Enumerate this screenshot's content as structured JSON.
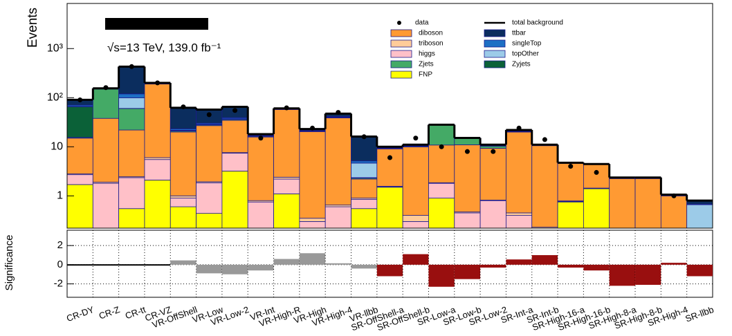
{
  "chart_data": [
    {
      "type": "stacked_log_bar",
      "ylabel": "Events",
      "annotation": "√s=13 TeV, 139.0 fb⁻¹",
      "categories": [
        "CR-DY",
        "CR-Z",
        "CR-tt",
        "CR-VZ",
        "VR-OffShell",
        "VR-Low",
        "VR-Low-2",
        "VR-Int",
        "VR-High-R",
        "VR-High",
        "VR-High-4",
        "VR-llbb",
        "SR-OffShell-a",
        "SR-OffShell-b",
        "SR-Low-a",
        "SR-Low-b",
        "SR-Low-2",
        "SR-Int-a",
        "SR-Int-b",
        "SR-High-16-a",
        "SR-High-16-b",
        "SR-High-8-a",
        "SR-High-8-b",
        "SR-High-4",
        "SR-llbb"
      ],
      "ylim": [
        0.22,
        8300
      ],
      "log_scale": true,
      "yticks": [
        1,
        10,
        {
          "value": 100,
          "label": "10²"
        },
        {
          "value": 1000,
          "label": "10³"
        }
      ],
      "series": [
        {
          "name": "FNP",
          "color": "#ffff00",
          "values": [
            1.7,
            0.1,
            0.55,
            2.1,
            0.6,
            0.44,
            3.2,
            0.1,
            1.1,
            0.05,
            0.1,
            0.55,
            1.5,
            0.05,
            0.9,
            0.02,
            0.02,
            0.02,
            0.01,
            0.75,
            1.4,
            0.01,
            0.01,
            0.01,
            0.01
          ]
        },
        {
          "name": "higgs",
          "color": "#ffc0c8",
          "values": [
            1.0,
            1.7,
            1.8,
            3.4,
            0.3,
            1.4,
            4.2,
            0.65,
            1.1,
            0.25,
            0.5,
            0.3,
            0.05,
            0.25,
            0.9,
            0.43,
            0.78,
            0.38,
            0.2,
            0.02,
            0.02,
            0.02,
            0.02,
            0.02,
            0.02
          ]
        },
        {
          "name": "triboson",
          "color": "#ffcc99",
          "values": [
            0.1,
            0.1,
            0.1,
            0.5,
            0.1,
            0.1,
            0.2,
            0.05,
            0.2,
            0.05,
            0.05,
            0.05,
            0.02,
            0.1,
            0.05,
            0.02,
            0.02,
            0.05,
            0.02,
            0.02,
            0.02,
            0.02,
            0.02,
            0.02,
            0.01
          ]
        },
        {
          "name": "diboson",
          "color": "#ff9a33",
          "values": [
            12.2,
            36,
            19.5,
            184,
            19,
            25,
            27,
            15,
            55,
            20,
            38,
            1.3,
            7.5,
            9.5,
            9,
            10.5,
            8.5,
            19.5,
            10.3,
            3.8,
            2.9,
            2.2,
            2.2,
            0.95,
            0.05
          ]
        },
        {
          "name": "Zjets",
          "color": "#44aa66",
          "values": [
            0.5,
            112,
            38,
            5,
            1,
            1,
            1.5,
            0.5,
            1,
            0.5,
            1,
            0.1,
            0.2,
            0.3,
            17,
            4,
            1,
            0.5,
            0.2,
            0.05,
            0.03,
            0.02,
            0.02,
            0.01,
            0.01
          ]
        },
        {
          "name": "Zyjets",
          "color": "#0b6138",
          "values": [
            50,
            2,
            0.5,
            1,
            0.2,
            0.3,
            0.5,
            0.1,
            0.2,
            0.1,
            0.1,
            0.05,
            0.05,
            0.05,
            0.05,
            0.02,
            0.02,
            0.05,
            0.02,
            0.01,
            0.01,
            0.01,
            0.01,
            0.01,
            0.01
          ]
        },
        {
          "name": "topOther",
          "color": "#9ccbe8",
          "values": [
            1,
            0.5,
            39,
            0.5,
            0.5,
            0.5,
            0.5,
            0.2,
            0.2,
            0.2,
            0.5,
            2.3,
            0.1,
            0.1,
            0.05,
            0.02,
            0.1,
            0.2,
            0.05,
            0.02,
            0.02,
            0.02,
            0.02,
            0.01,
            0.55
          ]
        },
        {
          "name": "singleTop",
          "color": "#1d6fc4",
          "values": [
            4,
            0.5,
            20,
            0.5,
            1.5,
            1.5,
            2,
            0.3,
            0.3,
            0.3,
            1,
            0.5,
            0.1,
            0.1,
            0.05,
            0.02,
            0.1,
            0.3,
            0.05,
            0.02,
            0.02,
            0.02,
            0.02,
            0.01,
            0.02
          ]
        },
        {
          "name": "ttbar",
          "color": "#0b2d5e",
          "values": [
            20,
            2,
            310,
            3,
            39,
            27,
            26,
            1.2,
            1.5,
            1.5,
            6,
            11,
            0.5,
            0.6,
            0.1,
            0.1,
            0.5,
            1,
            0.2,
            0.05,
            0.03,
            0.05,
            0.05,
            0.02,
            0.12
          ]
        }
      ],
      "total_label": "total background",
      "data": {
        "name": "data",
        "color": "#000000",
        "values": [
          90,
          160,
          430,
          200,
          65,
          45,
          55,
          15,
          62,
          24,
          50,
          16,
          6,
          15,
          10,
          8,
          8,
          24,
          14,
          4,
          3,
          null,
          null,
          1,
          null
        ]
      }
    },
    {
      "type": "bar",
      "ylabel": "Significance",
      "ylim": [
        -3.4,
        3.6
      ],
      "yticks": [
        -2,
        0,
        2
      ],
      "grid": true,
      "values": [
        0.05,
        0.05,
        0.05,
        0.05,
        0.45,
        -0.9,
        -1.0,
        -0.6,
        0.6,
        1.2,
        0.15,
        -0.4,
        -1.2,
        1.1,
        -2.3,
        -1.5,
        -0.3,
        0.55,
        1.0,
        -0.3,
        -0.6,
        -2.2,
        -2.1,
        0.2,
        -1.2
      ],
      "colors": [
        "#000000",
        "#000000",
        "#000000",
        "#000000",
        "#999999",
        "#999999",
        "#999999",
        "#999999",
        "#999999",
        "#999999",
        "#999999",
        "#999999",
        "#990f0f",
        "#990f0f",
        "#990f0f",
        "#990f0f",
        "#990f0f",
        "#990f0f",
        "#990f0f",
        "#990f0f",
        "#990f0f",
        "#990f0f",
        "#990f0f",
        "#990f0f",
        "#990f0f"
      ]
    }
  ]
}
